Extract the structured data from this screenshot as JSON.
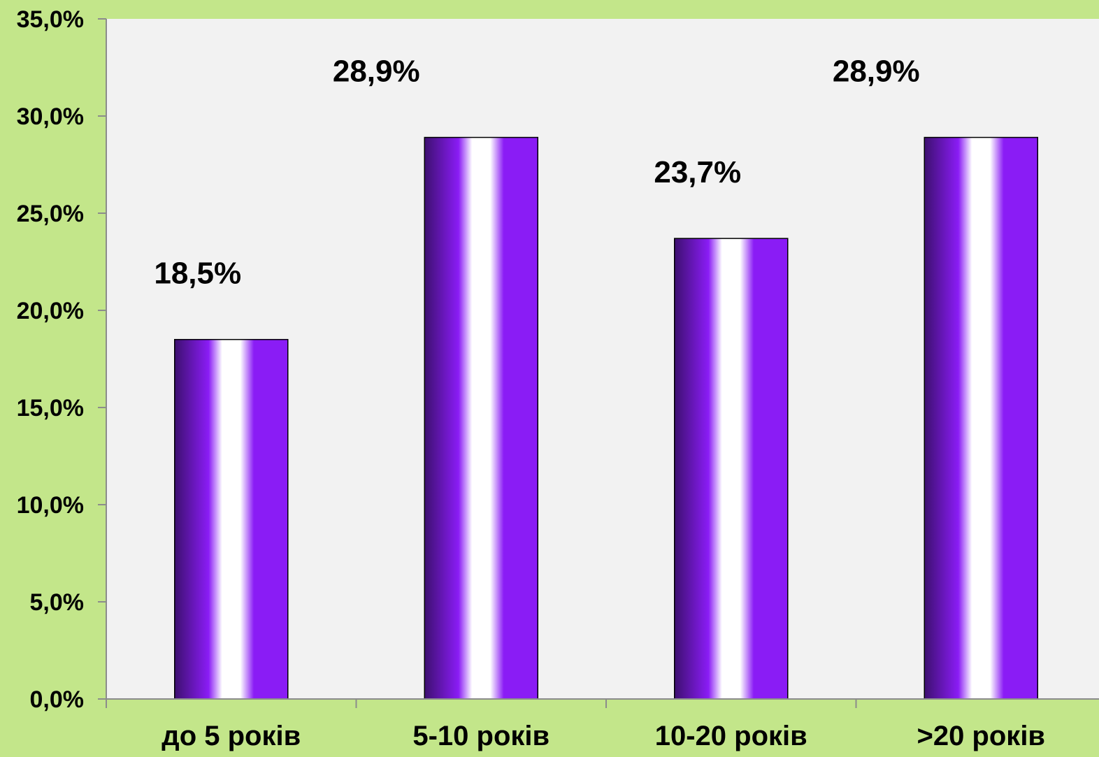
{
  "chart_data": {
    "type": "bar",
    "categories": [
      "до 5 років",
      "5-10 років",
      "10-20 років",
      ">20 років"
    ],
    "values": [
      18.5,
      28.9,
      23.7,
      28.9
    ],
    "data_labels": [
      "18,5%",
      "28,9%",
      "23,7%",
      "28,9%"
    ],
    "ylim": [
      0,
      35
    ],
    "yticks": [
      "0,0%",
      "5,0%",
      "10,0%",
      "15,0%",
      "20,0%",
      "25,0%",
      "30,0%",
      "35,0%"
    ],
    "ytick_values": [
      0,
      5,
      10,
      15,
      20,
      25,
      30,
      35
    ],
    "grid": false,
    "colors": {
      "background": "#c3e68a",
      "plot_area": "#f2f2f2",
      "bar_dark": "#3d1070",
      "bar_mid": "#8a1cf5",
      "bar_light": "#ffffff",
      "axis": "#8c8c8c"
    }
  }
}
